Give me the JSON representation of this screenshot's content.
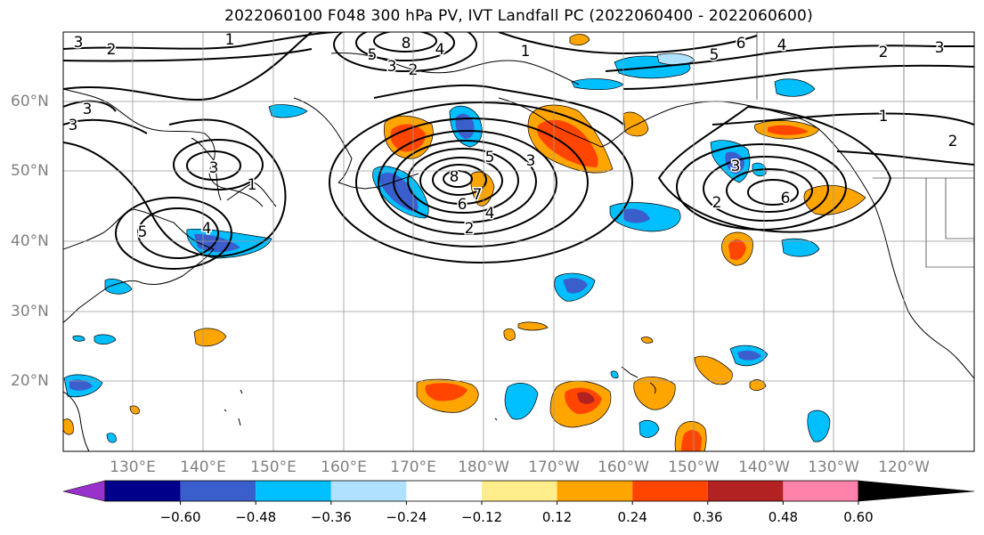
{
  "title": "2022060100 F048 300 hPa PV, IVT Landfall PC (2022060400 - 2022060600)",
  "lat_labels": [
    "60°N",
    "50°N",
    "40°N",
    "30°N",
    "20°N"
  ],
  "lon_labels": [
    "130°E",
    "140°E",
    "150°E",
    "160°E",
    "170°E",
    "180°W",
    "170°W",
    "160°W",
    "150°W",
    "140°W",
    "130°W",
    "120°W"
  ],
  "colorbar": {
    "labels": [
      "−0.60",
      "−0.48",
      "−0.36",
      "−0.24",
      "−0.12",
      "0.12",
      "0.24",
      "0.36",
      "0.48",
      "0.60"
    ],
    "colors": [
      "#9932CC",
      "#00008B",
      "#3A5FCD",
      "#00BFFF",
      "#B0E2FF",
      "#FFFFFF",
      "#FFEC8B",
      "#FFA500",
      "#FF4500",
      "#B22222",
      "#FF82AB"
    ]
  },
  "contour_labels": {
    "c1": "3",
    "c2": "2",
    "c3": "1",
    "c4": "3",
    "c5": "3",
    "c6": "1",
    "c7": "3",
    "c8": "8",
    "c9": "5",
    "c10": "7",
    "c11": "6",
    "c12": "4",
    "c13": "2",
    "c14": "3",
    "c15": "4",
    "c16": "5",
    "c17": "6",
    "c18": "2",
    "c19": "3",
    "c20": "2",
    "c21": "1",
    "c22": "6",
    "c23": "5",
    "c24": "4",
    "c25": "2",
    "c26": "3",
    "c27": "2",
    "c28": "8",
    "c29": "5",
    "c30": "4",
    "c31": "3",
    "c32": "1"
  }
}
